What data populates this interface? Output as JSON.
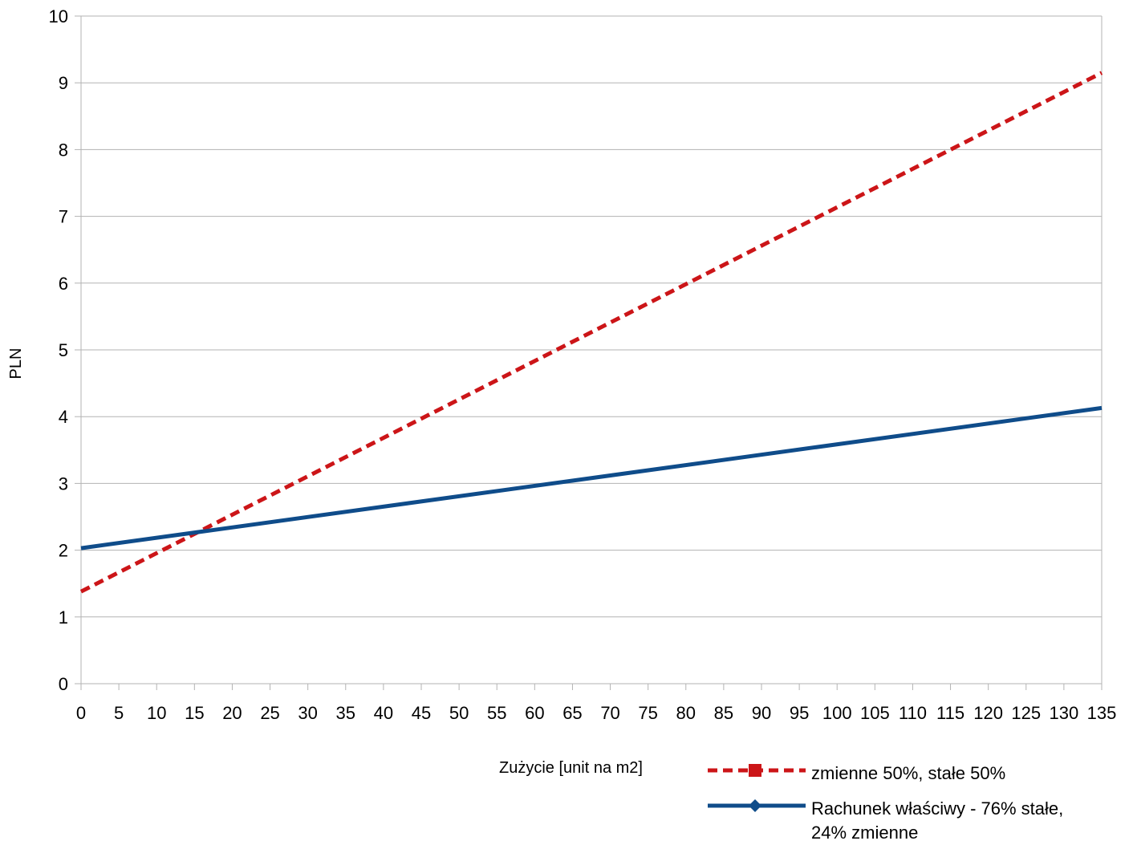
{
  "chart_data": {
    "type": "line",
    "title": "",
    "xlabel": "Zużycie [unit na m2]",
    "ylabel": "PLN",
    "xlim": [
      0,
      135
    ],
    "ylim": [
      0,
      10
    ],
    "x_ticks": [
      "0",
      "5",
      "10",
      "15",
      "20",
      "25",
      "30",
      "35",
      "40",
      "45",
      "50",
      "55",
      "60",
      "65",
      "70",
      "75",
      "80",
      "85",
      "90",
      "95",
      "100",
      "105",
      "110",
      "115",
      "120",
      "125",
      "130",
      "135"
    ],
    "y_ticks": [
      "0",
      "1",
      "2",
      "3",
      "4",
      "5",
      "6",
      "7",
      "8",
      "9",
      "10"
    ],
    "grid": "horizontal",
    "legend_position": "bottom-right",
    "series": [
      {
        "name": "zmienne 50%, stałe 50%",
        "color": "#cc1518",
        "style": "dashed",
        "marker": "square",
        "x": [
          0,
          135
        ],
        "y": [
          1.38,
          9.15
        ]
      },
      {
        "name": "Rachunek właściwy - 76% stałe, 24% zmienne",
        "name_lines": [
          "Rachunek właściwy - 76% stałe,",
          "24% zmienne"
        ],
        "color": "#0f4c8a",
        "style": "solid",
        "marker": "diamond",
        "x": [
          0,
          135
        ],
        "y": [
          2.03,
          4.13
        ]
      }
    ]
  }
}
